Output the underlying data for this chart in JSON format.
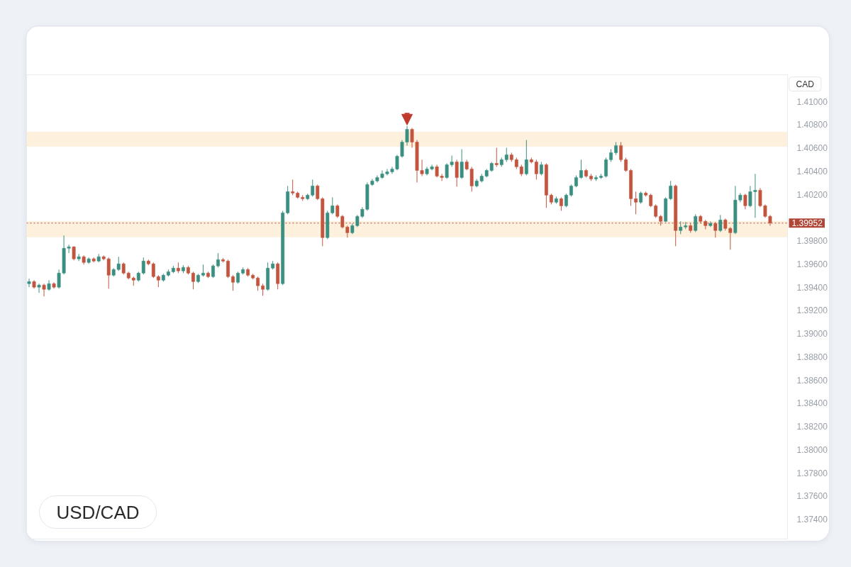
{
  "chart_data": {
    "type": "candlestick",
    "title": "USD/CAD",
    "ylabel": "CAD",
    "categories": [
      null,
      null,
      null,
      null,
      null,
      null,
      null,
      null,
      null,
      null,
      null,
      null,
      null,
      null,
      null,
      null,
      null,
      null,
      null,
      null,
      null,
      null,
      null,
      null,
      null,
      null,
      null,
      null,
      null,
      null,
      null,
      null,
      null,
      null,
      null,
      null,
      null,
      null,
      null,
      null,
      null,
      null,
      null,
      null,
      null,
      null,
      null,
      null,
      null,
      null,
      null,
      null,
      null,
      null,
      null,
      null,
      null,
      null,
      null,
      null,
      null,
      null,
      null,
      null,
      null,
      null,
      null,
      null,
      null,
      null,
      null,
      null,
      null,
      null,
      null,
      null,
      null,
      null,
      null,
      null,
      null,
      null,
      null,
      null,
      null,
      null,
      null,
      null,
      null,
      null,
      null,
      null,
      null,
      null,
      null,
      null,
      null,
      null,
      null,
      null,
      null,
      null,
      null,
      null,
      null,
      null,
      null,
      null,
      null,
      null,
      null,
      null,
      null,
      null,
      null,
      null,
      null,
      null,
      null,
      null,
      null,
      null,
      null,
      null,
      null,
      null,
      null,
      null,
      null,
      null,
      null,
      null,
      null,
      null,
      null,
      null,
      null,
      null,
      null,
      null,
      null,
      null,
      null,
      null,
      null,
      null,
      null,
      null,
      null,
      null,
      null,
      null,
      null
    ],
    "ohlc": [
      [
        1.3943,
        1.39473,
        1.394,
        1.39448
      ],
      [
        1.39448,
        1.3946,
        1.39387,
        1.394
      ],
      [
        1.394,
        1.3943,
        1.39351,
        1.39418
      ],
      [
        1.39418,
        1.3943,
        1.3932,
        1.39381
      ],
      [
        1.39381,
        1.3946,
        1.39369,
        1.3943
      ],
      [
        1.3943,
        1.39442,
        1.39387,
        1.394
      ],
      [
        1.394,
        1.39552,
        1.39387,
        1.39521
      ],
      [
        1.39521,
        1.39845,
        1.39509,
        1.39735
      ],
      [
        1.39735,
        1.39766,
        1.39693,
        1.39747
      ],
      [
        1.39747,
        1.39753,
        1.39631,
        1.39644
      ],
      [
        1.39644,
        1.39686,
        1.39625,
        1.39662
      ],
      [
        1.39662,
        1.39674,
        1.39595,
        1.39613
      ],
      [
        1.39613,
        1.39656,
        1.39601,
        1.39644
      ],
      [
        1.39644,
        1.39656,
        1.39613,
        1.39625
      ],
      [
        1.39625,
        1.39686,
        1.39613,
        1.39662
      ],
      [
        1.39662,
        1.39674,
        1.39631,
        1.39644
      ],
      [
        1.39644,
        1.39656,
        1.39387,
        1.39503
      ],
      [
        1.39503,
        1.39564,
        1.39491,
        1.39552
      ],
      [
        1.39552,
        1.39662,
        1.3954,
        1.39601
      ],
      [
        1.39601,
        1.39613,
        1.39509,
        1.39521
      ],
      [
        1.39521,
        1.39533,
        1.39467,
        1.39479
      ],
      [
        1.39479,
        1.39491,
        1.39412,
        1.3946
      ],
      [
        1.3946,
        1.39533,
        1.39448,
        1.39521
      ],
      [
        1.39521,
        1.39656,
        1.39509,
        1.39625
      ],
      [
        1.39625,
        1.39637,
        1.39589,
        1.39601
      ],
      [
        1.39601,
        1.39613,
        1.39479,
        1.39491
      ],
      [
        1.39491,
        1.39503,
        1.394,
        1.3946
      ],
      [
        1.3946,
        1.39515,
        1.39448,
        1.39503
      ],
      [
        1.39503,
        1.39552,
        1.39491,
        1.39533
      ],
      [
        1.39533,
        1.39583,
        1.39521,
        1.39564
      ],
      [
        1.39564,
        1.39613,
        1.39521,
        1.3954
      ],
      [
        1.3954,
        1.39589,
        1.39521,
        1.3957
      ],
      [
        1.3957,
        1.39583,
        1.39509,
        1.39521
      ],
      [
        1.39521,
        1.39533,
        1.39381,
        1.39448
      ],
      [
        1.39448,
        1.39515,
        1.39436,
        1.39503
      ],
      [
        1.39503,
        1.39595,
        1.39491,
        1.39521
      ],
      [
        1.39521,
        1.39533,
        1.39479,
        1.39491
      ],
      [
        1.39491,
        1.39595,
        1.39479,
        1.39583
      ],
      [
        1.39583,
        1.39693,
        1.3957,
        1.39637
      ],
      [
        1.39637,
        1.3965,
        1.39613,
        1.39625
      ],
      [
        1.39625,
        1.39637,
        1.39479,
        1.39491
      ],
      [
        1.39491,
        1.39503,
        1.39369,
        1.39442
      ],
      [
        1.39442,
        1.39533,
        1.3943,
        1.39521
      ],
      [
        1.39521,
        1.3957,
        1.39509,
        1.39552
      ],
      [
        1.39552,
        1.39564,
        1.39491,
        1.39503
      ],
      [
        1.39503,
        1.39515,
        1.39467,
        1.39479
      ],
      [
        1.39479,
        1.39491,
        1.39369,
        1.39412
      ],
      [
        1.39412,
        1.3943,
        1.39326,
        1.39381
      ],
      [
        1.39381,
        1.39613,
        1.39369,
        1.39564
      ],
      [
        1.39564,
        1.39625,
        1.39552,
        1.39601
      ],
      [
        1.39601,
        1.39613,
        1.39381,
        1.3943
      ],
      [
        1.3943,
        1.40058,
        1.39418,
        1.4004
      ],
      [
        1.4004,
        1.40272,
        1.40028,
        1.40223
      ],
      [
        1.40223,
        1.40327,
        1.40193,
        1.40211
      ],
      [
        1.40211,
        1.40223,
        1.40162,
        1.40174
      ],
      [
        1.40174,
        1.40193,
        1.40144,
        1.40162
      ],
      [
        1.40162,
        1.40205,
        1.4015,
        1.40193
      ],
      [
        1.40193,
        1.40327,
        1.4018,
        1.40272
      ],
      [
        1.40272,
        1.40284,
        1.4015,
        1.40162
      ],
      [
        1.40162,
        1.40174,
        1.39753,
        1.39827
      ],
      [
        1.39827,
        1.40058,
        1.39814,
        1.4004
      ],
      [
        1.4004,
        1.40174,
        1.40028,
        1.40101
      ],
      [
        1.40101,
        1.40113,
        1.39997,
        1.4001
      ],
      [
        1.4001,
        1.40022,
        1.39906,
        1.39918
      ],
      [
        1.39918,
        1.3993,
        1.39827,
        1.39869
      ],
      [
        1.39869,
        1.39949,
        1.39857,
        1.3993
      ],
      [
        1.3993,
        1.40022,
        1.39918,
        1.4001
      ],
      [
        1.4001,
        1.40089,
        1.39997,
        1.40071
      ],
      [
        1.40071,
        1.40302,
        1.40058,
        1.40284
      ],
      [
        1.40284,
        1.40333,
        1.40272,
        1.40315
      ],
      [
        1.40315,
        1.40363,
        1.40302,
        1.40345
      ],
      [
        1.40345,
        1.40406,
        1.40333,
        1.40376
      ],
      [
        1.40376,
        1.40418,
        1.40363,
        1.40394
      ],
      [
        1.40394,
        1.40437,
        1.40376,
        1.40418
      ],
      [
        1.40418,
        1.4054,
        1.40406,
        1.40528
      ],
      [
        1.40528,
        1.40668,
        1.40516,
        1.4065
      ],
      [
        1.4065,
        1.4079,
        1.4062,
        1.4076
      ],
      [
        1.4076,
        1.40772,
        1.40601,
        1.4065
      ],
      [
        1.4065,
        1.40668,
        1.40302,
        1.40406
      ],
      [
        1.40406,
        1.40498,
        1.40357,
        1.40376
      ],
      [
        1.40376,
        1.40437,
        1.40363,
        1.40418
      ],
      [
        1.40418,
        1.40455,
        1.40406,
        1.40437
      ],
      [
        1.40437,
        1.40455,
        1.40345,
        1.40357
      ],
      [
        1.40357,
        1.40376,
        1.40315,
        1.40345
      ],
      [
        1.40345,
        1.40467,
        1.40333,
        1.40455
      ],
      [
        1.40455,
        1.40534,
        1.40437,
        1.40479
      ],
      [
        1.40479,
        1.40498,
        1.40266,
        1.40345
      ],
      [
        1.40345,
        1.40589,
        1.40333,
        1.40479
      ],
      [
        1.40479,
        1.40498,
        1.40406,
        1.40418
      ],
      [
        1.40418,
        1.40437,
        1.40223,
        1.40272
      ],
      [
        1.40272,
        1.40333,
        1.4026,
        1.40315
      ],
      [
        1.40315,
        1.40376,
        1.40302,
        1.40357
      ],
      [
        1.40357,
        1.40418,
        1.40345,
        1.40406
      ],
      [
        1.40406,
        1.40479,
        1.40394,
        1.40467
      ],
      [
        1.40467,
        1.40601,
        1.40437,
        1.40455
      ],
      [
        1.40455,
        1.40516,
        1.40437,
        1.40498
      ],
      [
        1.40498,
        1.40601,
        1.40479,
        1.4054
      ],
      [
        1.4054,
        1.40559,
        1.40479,
        1.40498
      ],
      [
        1.40498,
        1.40516,
        1.40418,
        1.40437
      ],
      [
        1.40437,
        1.40455,
        1.40357,
        1.40376
      ],
      [
        1.40376,
        1.40668,
        1.40363,
        1.40498
      ],
      [
        1.40498,
        1.40516,
        1.40467,
        1.40479
      ],
      [
        1.40479,
        1.40498,
        1.40327,
        1.40376
      ],
      [
        1.40376,
        1.40479,
        1.40363,
        1.40455
      ],
      [
        1.40455,
        1.40467,
        1.40083,
        1.40193
      ],
      [
        1.40193,
        1.40205,
        1.40113,
        1.40132
      ],
      [
        1.40132,
        1.4018,
        1.40119,
        1.40162
      ],
      [
        1.40162,
        1.40174,
        1.40058,
        1.40101
      ],
      [
        1.40101,
        1.40205,
        1.40089,
        1.40193
      ],
      [
        1.40193,
        1.40284,
        1.4018,
        1.40272
      ],
      [
        1.40272,
        1.40363,
        1.4026,
        1.40345
      ],
      [
        1.40345,
        1.40498,
        1.40333,
        1.40406
      ],
      [
        1.40406,
        1.40418,
        1.40345,
        1.40357
      ],
      [
        1.40357,
        1.40376,
        1.40315,
        1.40333
      ],
      [
        1.40333,
        1.40363,
        1.40315,
        1.40345
      ],
      [
        1.40345,
        1.40376,
        1.40333,
        1.40357
      ],
      [
        1.40357,
        1.40516,
        1.40345,
        1.40498
      ],
      [
        1.40498,
        1.40589,
        1.40479,
        1.40559
      ],
      [
        1.40559,
        1.4065,
        1.4054,
        1.4062
      ],
      [
        1.4062,
        1.4065,
        1.40479,
        1.40498
      ],
      [
        1.40498,
        1.40516,
        1.40394,
        1.40406
      ],
      [
        1.40406,
        1.40418,
        1.40101,
        1.40162
      ],
      [
        1.40162,
        1.40223,
        1.40028,
        1.40132
      ],
      [
        1.40132,
        1.40223,
        1.40119,
        1.40211
      ],
      [
        1.40211,
        1.40223,
        1.4018,
        1.40193
      ],
      [
        1.40193,
        1.40205,
        1.40089,
        1.40101
      ],
      [
        1.40101,
        1.40113,
        1.39997,
        1.4001
      ],
      [
        1.4001,
        1.40022,
        1.3993,
        1.39967
      ],
      [
        1.39967,
        1.40174,
        1.39961,
        1.40162
      ],
      [
        1.40162,
        1.40315,
        1.4015,
        1.40272
      ],
      [
        1.40272,
        1.40284,
        1.39753,
        1.39888
      ],
      [
        1.39888,
        1.39967,
        1.39857,
        1.39918
      ],
      [
        1.39918,
        1.39961,
        1.399,
        1.3993
      ],
      [
        1.3993,
        1.39949,
        1.39869,
        1.39888
      ],
      [
        1.39888,
        1.40028,
        1.39875,
        1.4001
      ],
      [
        1.4001,
        1.40022,
        1.39949,
        1.39967
      ],
      [
        1.39967,
        1.39979,
        1.399,
        1.3993
      ],
      [
        1.3993,
        1.39967,
        1.39918,
        1.39949
      ],
      [
        1.39949,
        1.39961,
        1.39827,
        1.39888
      ],
      [
        1.39888,
        1.40022,
        1.39875,
        1.39979
      ],
      [
        1.39979,
        1.39991,
        1.39888,
        1.39906
      ],
      [
        1.39906,
        1.39918,
        1.39723,
        1.39869
      ],
      [
        1.39869,
        1.40272,
        1.39857,
        1.4015
      ],
      [
        1.4015,
        1.40211,
        1.40132,
        1.40193
      ],
      [
        1.40193,
        1.40205,
        1.40071,
        1.40101
      ],
      [
        1.40101,
        1.40272,
        1.40089,
        1.40223
      ],
      [
        1.40223,
        1.40376,
        1.39997,
        1.40235
      ],
      [
        1.40235,
        1.40254,
        1.40089,
        1.40101
      ],
      [
        1.40101,
        1.40113,
        1.39997,
        1.4001
      ],
      [
        1.4001,
        1.40022,
        1.3993,
        1.39952
      ],
      null,
      null,
      null
    ],
    "colors": [
      "#3a8f80",
      "#c2553f",
      "#3a8f80",
      "#c2553f",
      "#3a8f80",
      "#c2553f",
      "#3a8f80",
      "#3a8f80",
      "#3a8f80",
      "#c2553f",
      "#3a8f80",
      "#c2553f",
      "#3a8f80",
      "#c2553f",
      "#3a8f80",
      "#c2553f",
      "#c2553f",
      "#3a8f80",
      "#3a8f80",
      "#c2553f",
      "#c2553f",
      "#c2553f",
      "#3a8f80",
      "#3a8f80",
      "#c2553f",
      "#c2553f",
      "#c2553f",
      "#3a8f80",
      "#3a8f80",
      "#3a8f80",
      "#c2553f",
      "#3a8f80",
      "#c2553f",
      "#c2553f",
      "#3a8f80",
      "#3a8f80",
      "#c2553f",
      "#3a8f80",
      "#3a8f80",
      "#c2553f",
      "#c2553f",
      "#c2553f",
      "#3a8f80",
      "#3a8f80",
      "#c2553f",
      "#c2553f",
      "#c2553f",
      "#c2553f",
      "#3a8f80",
      "#3a8f80",
      "#c2553f",
      "#3a8f80",
      "#3a8f80",
      "#c2553f",
      "#c2553f",
      "#c2553f",
      "#3a8f80",
      "#3a8f80",
      "#c2553f",
      "#c2553f",
      "#3a8f80",
      "#3a8f80",
      "#c2553f",
      "#c2553f",
      "#c2553f",
      "#3a8f80",
      "#3a8f80",
      "#3a8f80",
      "#3a8f80",
      "#3a8f80",
      "#3a8f80",
      "#3a8f80",
      "#3a8f80",
      "#3a8f80",
      "#3a8f80",
      "#3a8f80",
      "#3a8f80",
      "#c2553f",
      "#c2553f",
      "#c2553f",
      "#3a8f80",
      "#3a8f80",
      "#c2553f",
      "#c2553f",
      "#3a8f80",
      "#3a8f80",
      "#c2553f",
      "#3a8f80",
      "#c2553f",
      "#c2553f",
      "#3a8f80",
      "#3a8f80",
      "#3a8f80",
      "#3a8f80",
      "#c2553f",
      "#3a8f80",
      "#3a8f80",
      "#c2553f",
      "#c2553f",
      "#c2553f",
      "#3a8f80",
      "#c2553f",
      "#c2553f",
      "#3a8f80",
      "#c2553f",
      "#c2553f",
      "#3a8f80",
      "#c2553f",
      "#3a8f80",
      "#3a8f80",
      "#3a8f80",
      "#3a8f80",
      "#c2553f",
      "#c2553f",
      "#3a8f80",
      "#3a8f80",
      "#3a8f80",
      "#3a8f80",
      "#3a8f80",
      "#c2553f",
      "#c2553f",
      "#c2553f",
      "#c2553f",
      "#3a8f80",
      "#c2553f",
      "#c2553f",
      "#c2553f",
      "#c2553f",
      "#3a8f80",
      "#3a8f80",
      "#c2553f",
      "#3a8f80",
      "#3a8f80",
      "#c2553f",
      "#3a8f80",
      "#c2553f",
      "#c2553f",
      "#3a8f80",
      "#c2553f",
      "#3a8f80",
      "#c2553f",
      "#c2553f",
      "#3a8f80",
      "#3a8f80",
      "#c2553f",
      "#3a8f80",
      "#3a8f80",
      "#c2553f",
      "#c2553f",
      "#c2553f",
      null,
      null,
      null
    ],
    "ylim": [
      1.3723,
      1.4123
    ],
    "yticks": [
      {
        "value": 1.41,
        "label": "1.41000"
      },
      {
        "value": 1.408,
        "label": "1.40800"
      },
      {
        "value": 1.406,
        "label": "1.40600"
      },
      {
        "value": 1.404,
        "label": "1.40400"
      },
      {
        "value": 1.402,
        "label": "1.40200"
      },
      {
        "value": 1.398,
        "label": "1.39800"
      },
      {
        "value": 1.396,
        "label": "1.39600"
      },
      {
        "value": 1.394,
        "label": "1.39400"
      },
      {
        "value": 1.392,
        "label": "1.39200"
      },
      {
        "value": 1.39,
        "label": "1.39000"
      },
      {
        "value": 1.388,
        "label": "1.38800"
      },
      {
        "value": 1.386,
        "label": "1.38600"
      },
      {
        "value": 1.384,
        "label": "1.38400"
      },
      {
        "value": 1.382,
        "label": "1.38200"
      },
      {
        "value": 1.38,
        "label": "1.38000"
      },
      {
        "value": 1.378,
        "label": "1.37800"
      },
      {
        "value": 1.376,
        "label": "1.37600"
      },
      {
        "value": 1.374,
        "label": "1.37400"
      }
    ],
    "tick_labels": "y",
    "bands": [
      {
        "axis": "y",
        "from": 1.4061,
        "to": 1.4074,
        "color": "#fdf0dc"
      },
      {
        "axis": "y",
        "from": 1.3983,
        "to": 1.3997,
        "color": "#fdf0dc"
      }
    ],
    "ref_lines": [
      {
        "axis": "y",
        "value": 1.39952,
        "label": "1.39952",
        "color": "#b04636",
        "line_style": "dotted"
      }
    ]
  }
}
